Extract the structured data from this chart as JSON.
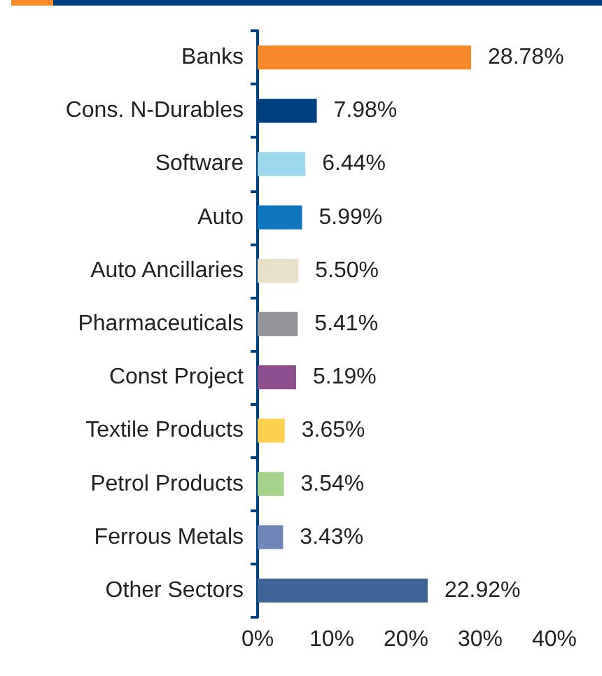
{
  "chart_data": {
    "type": "bar",
    "orientation": "horizontal",
    "categories": [
      "Banks",
      "Cons. N-Durables",
      "Software",
      "Auto",
      "Auto Ancillaries",
      "Pharmaceuticals",
      "Const Project",
      "Textile Products",
      "Petrol Products",
      "Ferrous Metals",
      "Other Sectors"
    ],
    "values": [
      28.78,
      7.98,
      6.44,
      5.99,
      5.5,
      5.41,
      5.19,
      3.65,
      3.54,
      3.43,
      22.92
    ],
    "value_labels": [
      "28.78%",
      "7.98%",
      "6.44%",
      "5.99%",
      "5.50%",
      "5.41%",
      "5.19%",
      "3.65%",
      "3.54%",
      "3.43%",
      "22.92%"
    ],
    "colors": [
      "#f7892a",
      "#003f7d",
      "#9dd8ec",
      "#0f75bc",
      "#e6e1c8",
      "#939598",
      "#8e4f8f",
      "#fdd04f",
      "#a6d38c",
      "#6f87b8",
      "#3e6497"
    ],
    "xlim": [
      0,
      40
    ],
    "xticks": [
      {
        "value": 0,
        "label": "0%"
      },
      {
        "value": 10,
        "label": "10%"
      },
      {
        "value": 20,
        "label": "20%"
      },
      {
        "value": 30,
        "label": "30%"
      },
      {
        "value": 40,
        "label": "40%"
      }
    ],
    "grid": false
  }
}
